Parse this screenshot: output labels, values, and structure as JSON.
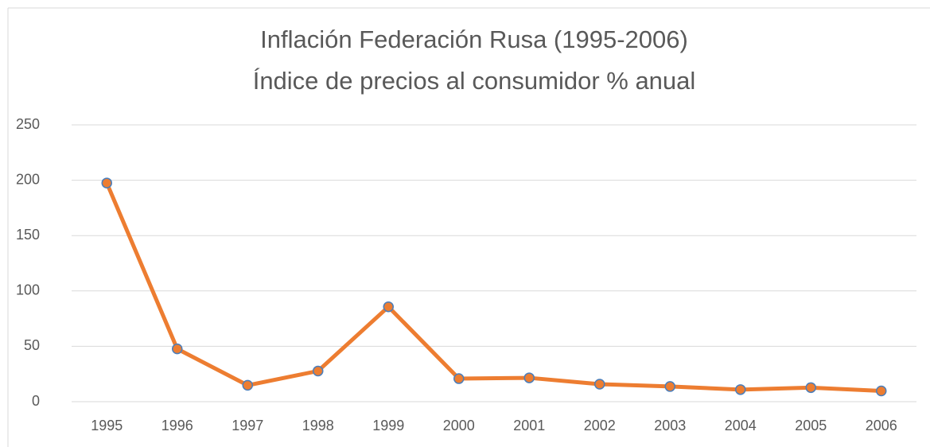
{
  "chart_data": {
    "type": "line",
    "title": "Inflación Federación Rusa (1995-2006)",
    "subtitle": "Índice de precios al consumidor % anual",
    "categories": [
      "1995",
      "1996",
      "1997",
      "1998",
      "1999",
      "2000",
      "2001",
      "2002",
      "2003",
      "2004",
      "2005",
      "2006"
    ],
    "values": [
      197.5,
      47.7,
      14.8,
      27.7,
      85.7,
      20.8,
      21.5,
      15.8,
      13.7,
      10.9,
      12.7,
      9.7
    ],
    "color": "#ed7d31",
    "marker_edge_color": "#4a7ebb",
    "ylim": [
      0,
      250
    ],
    "yticks": [
      0,
      50,
      100,
      150,
      200,
      250
    ],
    "grid": true
  }
}
